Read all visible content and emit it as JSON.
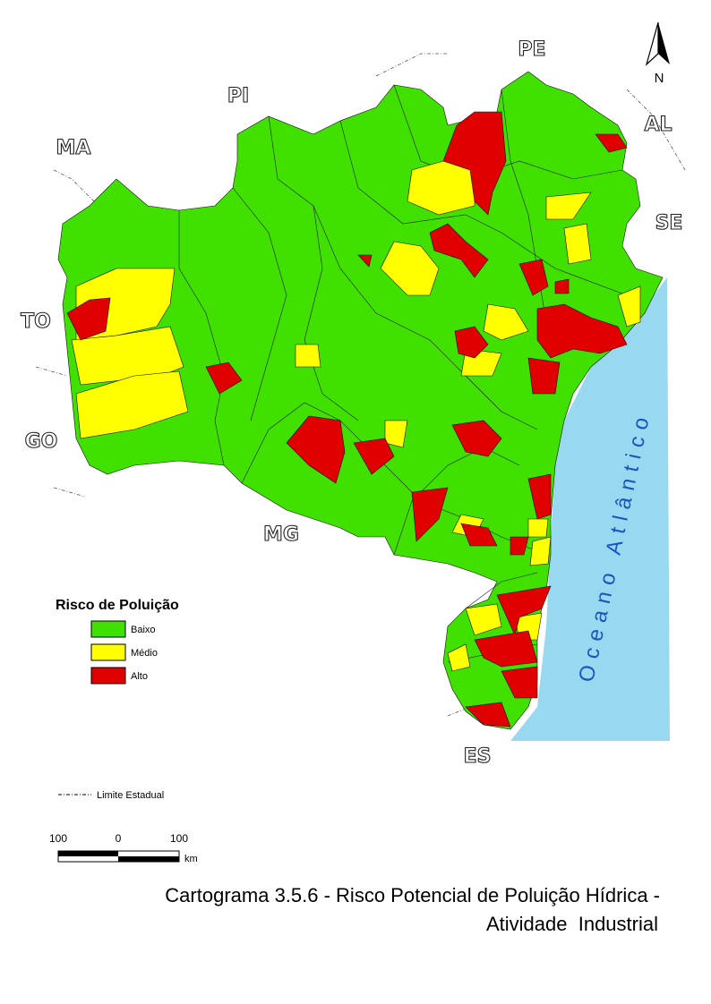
{
  "map": {
    "north_label": "N",
    "state_labels": [
      "PE",
      "PI",
      "MA",
      "AL",
      "SE",
      "TO",
      "GO",
      "MG",
      "ES"
    ],
    "ocean_label": "Oceano Atlântico",
    "legend": {
      "title": "Risco de Poluição",
      "items": [
        {
          "label": "Baixo",
          "color": "#40e000"
        },
        {
          "label": "Médio",
          "color": "#ffff00"
        },
        {
          "label": "Alto",
          "color": "#e00000"
        }
      ]
    },
    "boundary_legend": "Limite Estadual",
    "scale": {
      "labels": [
        "100",
        "0",
        "100"
      ],
      "unit": "km"
    },
    "caption": [
      "Cartograma 3.5.6 - Risco Potencial de Poluição Hídrica -",
      "Atividade  Industrial"
    ]
  }
}
